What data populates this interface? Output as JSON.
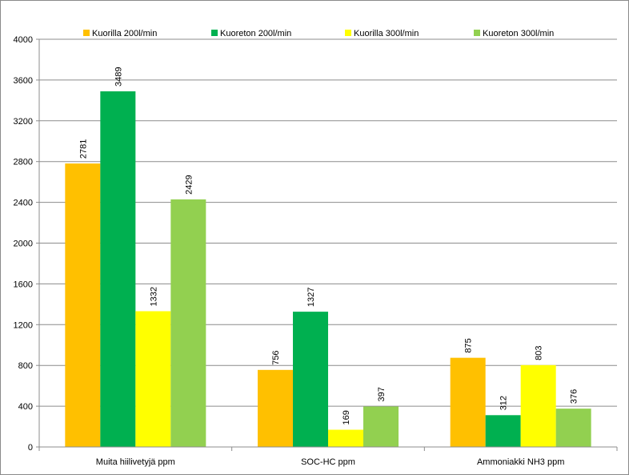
{
  "chart_data": {
    "type": "bar",
    "title": "",
    "xlabel": "",
    "ylabel": "",
    "categories": [
      "Muita hiilivetyjä ppm",
      "SOC-HC ppm",
      "Ammoniakki NH3 ppm"
    ],
    "series": [
      {
        "name": "Kuorilla 200l/min",
        "color": "#FFC000",
        "values": [
          2781,
          756,
          875
        ]
      },
      {
        "name": "Kuoreton 200l/min",
        "color": "#00B050",
        "values": [
          3489,
          1327,
          312
        ]
      },
      {
        "name": "Kuorilla 300l/min",
        "color": "#FFFF00",
        "values": [
          1332,
          169,
          803
        ]
      },
      {
        "name": "Kuoreton 300l/min",
        "color": "#92D050",
        "values": [
          2429,
          397,
          376
        ]
      }
    ],
    "ylim": [
      0,
      4000
    ],
    "yticks": [
      0,
      400,
      800,
      1200,
      1600,
      2000,
      2400,
      2800,
      3200,
      3600,
      4000
    ],
    "grid": true,
    "legend_position": "top",
    "data_labels": true
  }
}
